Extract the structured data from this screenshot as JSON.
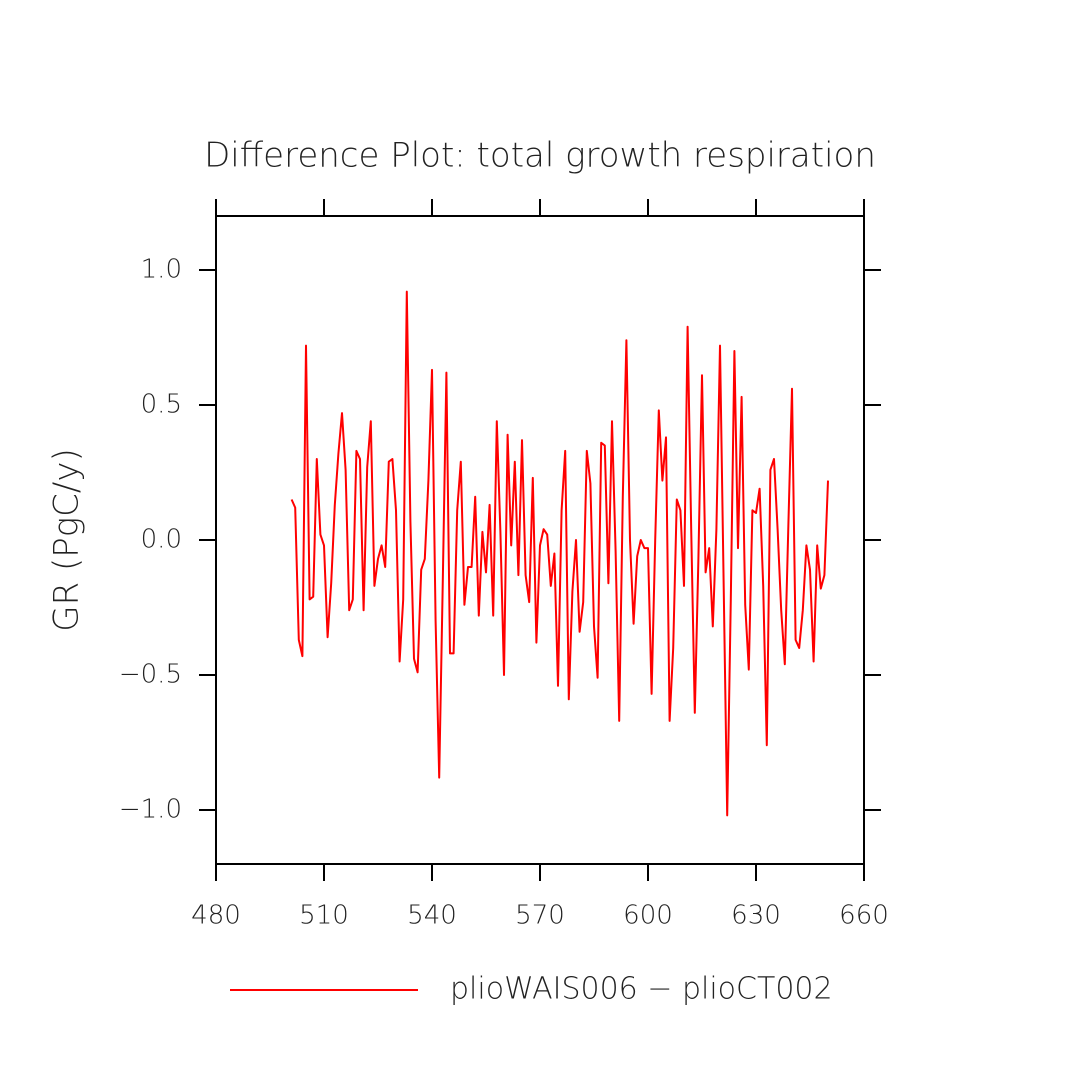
{
  "chart_data": {
    "type": "line",
    "title": "Difference Plot: total growth respiration",
    "y_label": "GR  (PgC/y)",
    "x": [
      501,
      502,
      503,
      504,
      505,
      506,
      507,
      508,
      509,
      510,
      511,
      512,
      513,
      514,
      515,
      516,
      517,
      518,
      519,
      520,
      521,
      522,
      523,
      524,
      525,
      526,
      527,
      528,
      529,
      530,
      531,
      532,
      533,
      534,
      535,
      536,
      537,
      538,
      539,
      540,
      541,
      542,
      543,
      544,
      545,
      546,
      547,
      548,
      549,
      550,
      551,
      552,
      553,
      554,
      555,
      556,
      557,
      558,
      559,
      560,
      561,
      562,
      563,
      564,
      565,
      566,
      567,
      568,
      569,
      570,
      571,
      572,
      573,
      574,
      575,
      576,
      577,
      578,
      579,
      580,
      581,
      582,
      583,
      584,
      585,
      586,
      587,
      588,
      589,
      590,
      591,
      592,
      593,
      594,
      595,
      596,
      597,
      598,
      599,
      600,
      601,
      602,
      603,
      604,
      605,
      606,
      607,
      608,
      609,
      610,
      611,
      612,
      613,
      614,
      615,
      616,
      617,
      618,
      619,
      620,
      621,
      622,
      623,
      624,
      625,
      626,
      627,
      628,
      629,
      630,
      631,
      632,
      633,
      634,
      635,
      636,
      637,
      638,
      639,
      640,
      641,
      642,
      643,
      644,
      645,
      646,
      647,
      648,
      649,
      650
    ],
    "series": [
      {
        "name": "plioWAIS006 − plioCT002",
        "color": "#ff0000",
        "values": [
          0.15,
          0.12,
          -0.37,
          -0.43,
          0.72,
          -0.22,
          -0.21,
          0.3,
          0.02,
          -0.02,
          -0.36,
          -0.16,
          0.13,
          0.32,
          0.47,
          0.26,
          -0.26,
          -0.22,
          0.33,
          0.3,
          -0.26,
          0.27,
          0.44,
          -0.17,
          -0.07,
          -0.02,
          -0.1,
          0.29,
          0.3,
          0.11,
          -0.45,
          -0.22,
          0.92,
          0.07,
          -0.44,
          -0.49,
          -0.11,
          -0.07,
          0.22,
          0.63,
          -0.3,
          -0.88,
          -0.15,
          0.62,
          -0.42,
          -0.42,
          0.11,
          0.29,
          -0.24,
          -0.1,
          -0.1,
          0.16,
          -0.28,
          0.03,
          -0.12,
          0.13,
          -0.28,
          0.44,
          0.03,
          -0.5,
          0.39,
          -0.02,
          0.29,
          -0.13,
          0.37,
          -0.13,
          -0.23,
          0.23,
          -0.38,
          -0.02,
          0.04,
          0.02,
          -0.17,
          -0.05,
          -0.54,
          0.11,
          0.33,
          -0.59,
          -0.19,
          0.0,
          -0.34,
          -0.23,
          0.33,
          0.21,
          -0.32,
          -0.51,
          0.36,
          0.35,
          -0.16,
          0.44,
          -0.04,
          -0.67,
          0.16,
          0.74,
          0.0,
          -0.31,
          -0.06,
          0.0,
          -0.03,
          -0.03,
          -0.57,
          0.0,
          0.48,
          0.22,
          0.38,
          -0.67,
          -0.4,
          0.15,
          0.11,
          -0.17,
          0.79,
          0.04,
          -0.64,
          -0.07,
          0.61,
          -0.12,
          -0.03,
          -0.32,
          0.04,
          0.72,
          -0.15,
          -1.02,
          -0.22,
          0.7,
          -0.03,
          0.53,
          -0.24,
          -0.48,
          0.11,
          0.1,
          0.19,
          -0.17,
          -0.76,
          0.26,
          0.3,
          0.04,
          -0.26,
          -0.46,
          0.06,
          0.56,
          -0.37,
          -0.4,
          -0.26,
          -0.02,
          -0.11,
          -0.45,
          -0.02,
          -0.18,
          -0.13,
          0.22
        ]
      }
    ],
    "xlim": [
      480,
      660
    ],
    "xticks": [
      480,
      510,
      540,
      570,
      600,
      630,
      660
    ],
    "ylim": [
      -1.2,
      1.2
    ],
    "yticks": [
      {
        "value": -1,
        "label": "−1.0"
      },
      {
        "value": -0.5,
        "label": "−0.5"
      },
      {
        "value": 0,
        "label": "0.0"
      },
      0.5,
      {
        "value": 1,
        "label": "1.0"
      }
    ],
    "grid": false,
    "legend": "bottom"
  }
}
